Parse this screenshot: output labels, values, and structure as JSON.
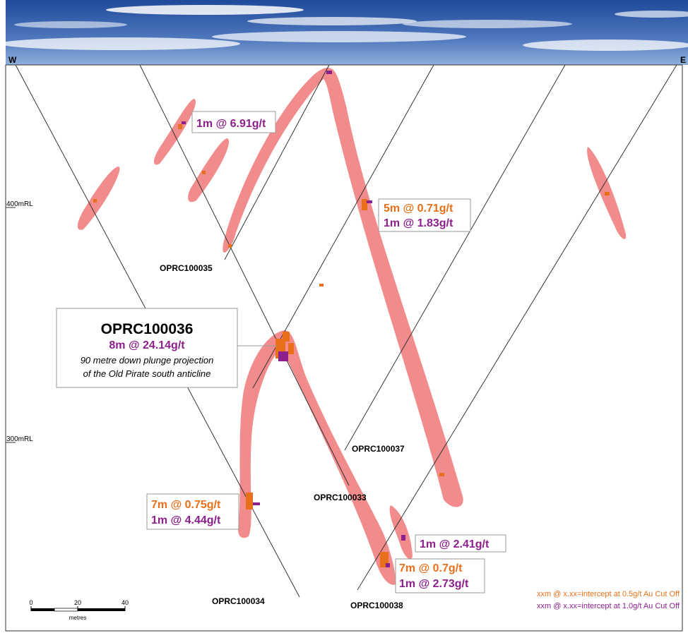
{
  "compass": {
    "west": "W",
    "east": "E"
  },
  "levels": {
    "rl400": "400mRL",
    "rl300": "300mRL"
  },
  "holes": {
    "h35": "OPRC100035",
    "h37": "OPRC100037",
    "h33": "OPRC100033",
    "h34": "OPRC100034",
    "h38": "OPRC100038"
  },
  "callouts": {
    "c1": {
      "line1": "1m @ 6.91g/t"
    },
    "c2": {
      "line1": "5m @ 0.71g/t",
      "line2": "1m @ 1.83g/t"
    },
    "c3": {
      "line1": "7m @ 0.75g/t",
      "line2": "1m @ 4.44g/t"
    },
    "c4": {
      "line1": "1m @ 2.41g/t"
    },
    "c5": {
      "line1": "7m @ 0.7g/t",
      "line2": "1m @ 2.73g/t"
    }
  },
  "feature": {
    "hole": "OPRC100036",
    "intercept": "8m @ 24.14g/t",
    "note1": "90 metre down plunge projection",
    "note2": "of the Old Pirate south anticline"
  },
  "legend": {
    "line1": "xxm @ x.xx=intercept at 0.5g/t Au Cut Off",
    "line2": "xxm @ x.xx=intercept at 1.0g/t Au Cut Off"
  },
  "scale": {
    "t0": "0",
    "t20": "20",
    "t40": "40",
    "unit": "metres"
  },
  "colors": {
    "orange": "#e8701a",
    "purple": "#8c1f8c",
    "mineralised_zone": "#f28b8b",
    "sky": "#3b63a9"
  }
}
